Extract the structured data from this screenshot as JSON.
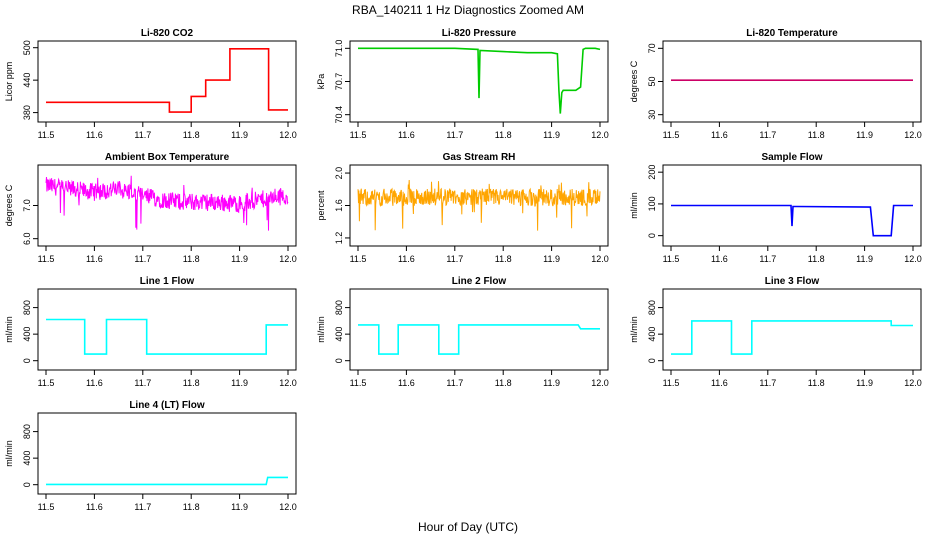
{
  "figure": {
    "title": "RBA_140211  1 Hz Diagnostics Zoomed AM",
    "xlabel": "Hour of Day (UTC)"
  },
  "chart_data": [
    {
      "type": "line",
      "title": "Li-820 CO2",
      "ylabel": "Licor ppm",
      "color": "#ff0000",
      "xlim": [
        11.5,
        12.0
      ],
      "ylim": [
        370,
        505
      ],
      "xticks": [
        "11.5",
        "11.6",
        "11.7",
        "11.8",
        "11.9",
        "12.0"
      ],
      "yticks": [
        380,
        440,
        500
      ],
      "ytick_labels": [
        "380",
        "440",
        "500"
      ],
      "series": [
        {
          "x": [
            11.5,
            11.7,
            11.755,
            11.755,
            11.8,
            11.8,
            11.83,
            11.83,
            11.88,
            11.88,
            11.96,
            11.96,
            12.0
          ],
          "y": [
            399,
            399,
            399,
            381,
            381,
            410,
            410,
            440,
            440,
            498,
            498,
            385,
            385
          ]
        }
      ]
    },
    {
      "type": "line",
      "title": "Li-820 Pressure",
      "ylabel": "kPa",
      "color": "#00cc00",
      "xlim": [
        11.5,
        12.0
      ],
      "ylim": [
        70.37,
        71.03
      ],
      "xticks": [
        "11.5",
        "11.6",
        "11.7",
        "11.8",
        "11.9",
        "12.0"
      ],
      "yticks": [
        70.4,
        70.7,
        71.0
      ],
      "ytick_labels": [
        "70.4",
        "70.7",
        "71.0"
      ],
      "series": [
        {
          "x": [
            11.5,
            11.6,
            11.7,
            11.748,
            11.75,
            11.752,
            11.8,
            11.85,
            11.9,
            11.912,
            11.915,
            11.918,
            11.921,
            11.924,
            11.93,
            11.95,
            11.96,
            11.965,
            11.97,
            11.99,
            12.0
          ],
          "y": [
            71.0,
            71.0,
            71.0,
            70.99,
            70.55,
            70.98,
            70.97,
            70.96,
            70.96,
            70.95,
            70.62,
            70.41,
            70.6,
            70.62,
            70.62,
            70.62,
            70.65,
            70.99,
            71.0,
            71.0,
            70.99
          ]
        }
      ]
    },
    {
      "type": "line",
      "title": "Li-820 Temperature",
      "ylabel": "degrees C",
      "color": "#cc0066",
      "xlim": [
        11.5,
        12.0
      ],
      "ylim": [
        28,
        72
      ],
      "xticks": [
        "11.5",
        "11.6",
        "11.7",
        "11.8",
        "11.9",
        "12.0"
      ],
      "yticks": [
        30,
        50,
        70
      ],
      "ytick_labels": [
        "30",
        "50",
        "70"
      ],
      "series": [
        {
          "x": [
            11.5,
            12.0
          ],
          "y": [
            50.8,
            50.8
          ]
        }
      ]
    },
    {
      "type": "line",
      "title": "Ambient Box Temperature",
      "ylabel": "degrees C",
      "color": "#ff00ff",
      "xlim": [
        11.5,
        12.0
      ],
      "ylim": [
        5.9,
        8.1
      ],
      "xticks": [
        "11.5",
        "11.6",
        "11.7",
        "11.8",
        "11.9",
        "12.0"
      ],
      "yticks": [
        6.0,
        7.0
      ],
      "ytick_labels": [
        "6.0",
        "7.0"
      ],
      "noisy": true,
      "series": [
        {
          "x": [
            11.5,
            11.55,
            11.6,
            11.65,
            11.7,
            11.75,
            11.8,
            11.85,
            11.9,
            11.95,
            12.0
          ],
          "y": [
            7.6,
            7.5,
            7.4,
            7.5,
            7.3,
            7.15,
            7.1,
            7.1,
            7.05,
            7.2,
            7.3
          ]
        }
      ]
    },
    {
      "type": "line",
      "title": "Gas Stream RH",
      "ylabel": "percent",
      "color": "#ffa500",
      "xlim": [
        11.5,
        12.0
      ],
      "ylim": [
        1.15,
        2.05
      ],
      "xticks": [
        "11.5",
        "11.6",
        "11.7",
        "11.8",
        "11.9",
        "12.0"
      ],
      "yticks": [
        1.2,
        1.6,
        2.0
      ],
      "ytick_labels": [
        "1.2",
        "1.6",
        "2.0"
      ],
      "noisy": true,
      "series": [
        {
          "x": [
            11.5,
            11.6,
            11.7,
            11.8,
            11.9,
            12.0
          ],
          "y": [
            1.7,
            1.7,
            1.7,
            1.7,
            1.7,
            1.7
          ]
        }
      ]
    },
    {
      "type": "line",
      "title": "Sample Flow",
      "ylabel": "ml/min",
      "color": "#0000ff",
      "xlim": [
        11.5,
        12.0
      ],
      "ylim": [
        -20,
        210
      ],
      "xticks": [
        "11.5",
        "11.6",
        "11.7",
        "11.8",
        "11.9",
        "12.0"
      ],
      "yticks": [
        0,
        100,
        200
      ],
      "ytick_labels": [
        "0",
        "100",
        "200"
      ],
      "series": [
        {
          "x": [
            11.5,
            11.748,
            11.75,
            11.752,
            11.76,
            11.912,
            11.918,
            11.955,
            11.96,
            12.0
          ],
          "y": [
            95,
            95,
            30,
            92,
            92,
            90,
            0,
            0,
            95,
            95
          ]
        }
      ]
    },
    {
      "type": "line",
      "title": "Line 1 Flow",
      "ylabel": "ml/min",
      "color": "#00ffff",
      "xlim": [
        11.5,
        12.0
      ],
      "ylim": [
        -80,
        1020
      ],
      "xticks": [
        "11.5",
        "11.6",
        "11.7",
        "11.8",
        "11.9",
        "12.0"
      ],
      "yticks": [
        0,
        400,
        800
      ],
      "ytick_labels": [
        "0",
        "400",
        "800"
      ],
      "series": [
        {
          "x": [
            11.5,
            11.58,
            11.58,
            11.625,
            11.625,
            11.708,
            11.708,
            11.955,
            11.955,
            12.0
          ],
          "y": [
            620,
            620,
            100,
            100,
            620,
            620,
            100,
            100,
            540,
            540
          ]
        }
      ]
    },
    {
      "type": "line",
      "title": "Line 2 Flow",
      "ylabel": "ml/min",
      "color": "#00ffff",
      "xlim": [
        11.5,
        12.0
      ],
      "ylim": [
        -80,
        1020
      ],
      "xticks": [
        "11.5",
        "11.6",
        "11.7",
        "11.8",
        "11.9",
        "12.0"
      ],
      "yticks": [
        0,
        400,
        800
      ],
      "ytick_labels": [
        "0",
        "400",
        "800"
      ],
      "series": [
        {
          "x": [
            11.5,
            11.543,
            11.543,
            11.583,
            11.583,
            11.667,
            11.667,
            11.708,
            11.708,
            11.955,
            11.96,
            12.0
          ],
          "y": [
            540,
            540,
            100,
            100,
            540,
            540,
            100,
            100,
            540,
            540,
            480,
            480
          ]
        }
      ]
    },
    {
      "type": "line",
      "title": "Line 3 Flow",
      "ylabel": "ml/min",
      "color": "#00ffff",
      "xlim": [
        11.5,
        12.0
      ],
      "ylim": [
        -80,
        1020
      ],
      "xticks": [
        "11.5",
        "11.6",
        "11.7",
        "11.8",
        "11.9",
        "12.0"
      ],
      "yticks": [
        0,
        400,
        800
      ],
      "ytick_labels": [
        "0",
        "400",
        "800"
      ],
      "series": [
        {
          "x": [
            11.5,
            11.543,
            11.543,
            11.625,
            11.625,
            11.667,
            11.667,
            11.955,
            11.955,
            12.0
          ],
          "y": [
            100,
            100,
            600,
            600,
            100,
            100,
            600,
            600,
            530,
            530
          ]
        }
      ]
    },
    {
      "type": "line",
      "title": "Line 4 (LT) Flow",
      "ylabel": "ml/min",
      "color": "#00ffff",
      "xlim": [
        11.5,
        12.0
      ],
      "ylim": [
        -80,
        1020
      ],
      "xticks": [
        "11.5",
        "11.6",
        "11.7",
        "11.8",
        "11.9",
        "12.0"
      ],
      "yticks": [
        0,
        400,
        800
      ],
      "ytick_labels": [
        "0",
        "400",
        "800"
      ],
      "series": [
        {
          "x": [
            11.5,
            11.955,
            11.958,
            12.0
          ],
          "y": [
            5,
            5,
            110,
            110
          ]
        }
      ]
    }
  ]
}
